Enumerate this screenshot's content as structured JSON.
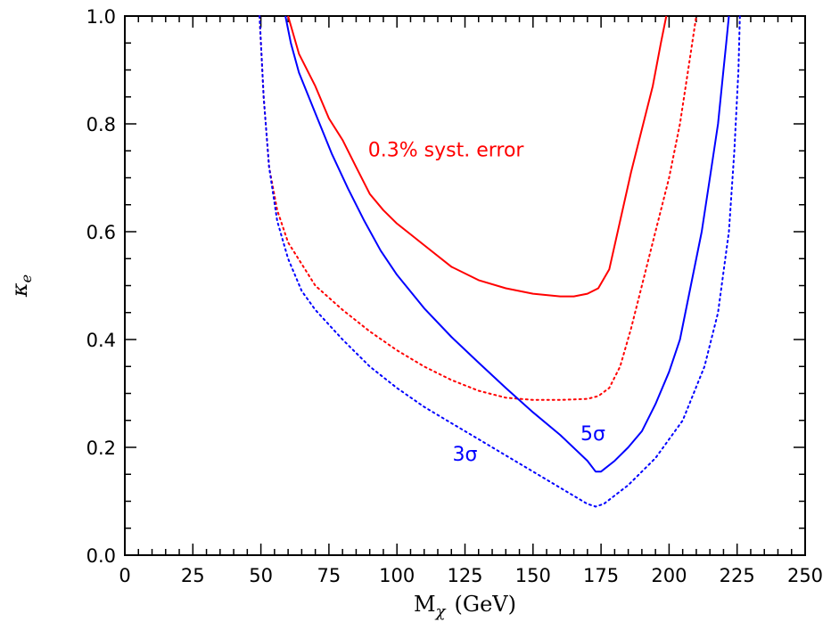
{
  "chart_data": {
    "type": "line",
    "title": "",
    "xlabel": {
      "main": "M",
      "sub": "χ",
      "unit": "(GeV)"
    },
    "ylabel": {
      "main": "κ",
      "sub": "e"
    },
    "xlim": [
      0,
      250
    ],
    "ylim": [
      0,
      1.0
    ],
    "x_ticks": [
      0,
      25,
      50,
      75,
      100,
      125,
      150,
      175,
      200,
      225,
      250
    ],
    "x_tick_labels": [
      "0",
      "25",
      "50",
      "75",
      "100",
      "125",
      "150",
      "175",
      "200",
      "225",
      "250"
    ],
    "y_ticks": [
      0.0,
      0.2,
      0.4,
      0.6,
      0.8,
      1.0
    ],
    "y_tick_labels": [
      "0.0",
      "0.2",
      "0.4",
      "0.6",
      "0.8",
      "1.0"
    ],
    "grid": false,
    "series": [
      {
        "color": "#ff0000",
        "dash": "solid",
        "points": [
          [
            60,
            1.0
          ],
          [
            64,
            0.93
          ],
          [
            70,
            0.87
          ],
          [
            75,
            0.81
          ],
          [
            80,
            0.77
          ],
          [
            85,
            0.72
          ],
          [
            90,
            0.67
          ],
          [
            95,
            0.64
          ],
          [
            100,
            0.615
          ],
          [
            105,
            0.595
          ],
          [
            110,
            0.575
          ],
          [
            120,
            0.535
          ],
          [
            130,
            0.51
          ],
          [
            140,
            0.495
          ],
          [
            150,
            0.485
          ],
          [
            160,
            0.48
          ],
          [
            165,
            0.48
          ],
          [
            170,
            0.485
          ],
          [
            174,
            0.495
          ],
          [
            178,
            0.53
          ],
          [
            182,
            0.62
          ],
          [
            186,
            0.71
          ],
          [
            190,
            0.79
          ],
          [
            194,
            0.87
          ],
          [
            197,
            0.95
          ],
          [
            199,
            1.0
          ]
        ]
      },
      {
        "color": "#ff0000",
        "dash": "dotted",
        "points": [
          [
            49.5,
            1.0
          ],
          [
            51,
            0.85
          ],
          [
            53,
            0.72
          ],
          [
            56,
            0.64
          ],
          [
            60,
            0.58
          ],
          [
            65,
            0.54
          ],
          [
            70,
            0.5
          ],
          [
            80,
            0.455
          ],
          [
            90,
            0.415
          ],
          [
            100,
            0.38
          ],
          [
            110,
            0.35
          ],
          [
            120,
            0.325
          ],
          [
            130,
            0.305
          ],
          [
            140,
            0.292
          ],
          [
            150,
            0.288
          ],
          [
            160,
            0.288
          ],
          [
            170,
            0.29
          ],
          [
            174,
            0.295
          ],
          [
            178,
            0.31
          ],
          [
            182,
            0.35
          ],
          [
            186,
            0.42
          ],
          [
            190,
            0.5
          ],
          [
            195,
            0.6
          ],
          [
            200,
            0.7
          ],
          [
            204,
            0.8
          ],
          [
            207,
            0.9
          ],
          [
            210,
            1.0
          ]
        ]
      },
      {
        "color": "#0000ff",
        "dash": "solid",
        "points": [
          [
            59,
            1.0
          ],
          [
            61,
            0.95
          ],
          [
            64,
            0.895
          ],
          [
            70,
            0.82
          ],
          [
            76,
            0.745
          ],
          [
            82,
            0.68
          ],
          [
            88,
            0.62
          ],
          [
            94,
            0.565
          ],
          [
            100,
            0.52
          ],
          [
            110,
            0.458
          ],
          [
            120,
            0.405
          ],
          [
            130,
            0.357
          ],
          [
            140,
            0.31
          ],
          [
            150,
            0.265
          ],
          [
            160,
            0.223
          ],
          [
            170,
            0.175
          ],
          [
            173,
            0.155
          ],
          [
            175,
            0.155
          ],
          [
            180,
            0.175
          ],
          [
            185,
            0.2
          ],
          [
            190,
            0.23
          ],
          [
            195,
            0.28
          ],
          [
            200,
            0.34
          ],
          [
            204,
            0.4
          ],
          [
            208,
            0.5
          ],
          [
            212,
            0.6
          ],
          [
            215,
            0.7
          ],
          [
            218,
            0.8
          ],
          [
            220,
            0.9
          ],
          [
            221,
            0.95
          ],
          [
            222,
            1.0
          ]
        ]
      },
      {
        "color": "#0000ff",
        "dash": "dotted",
        "points": [
          [
            49.5,
            1.0
          ],
          [
            51,
            0.85
          ],
          [
            53,
            0.72
          ],
          [
            56,
            0.62
          ],
          [
            60,
            0.55
          ],
          [
            65,
            0.49
          ],
          [
            70,
            0.455
          ],
          [
            80,
            0.4
          ],
          [
            90,
            0.35
          ],
          [
            100,
            0.31
          ],
          [
            110,
            0.275
          ],
          [
            120,
            0.245
          ],
          [
            130,
            0.215
          ],
          [
            140,
            0.185
          ],
          [
            150,
            0.155
          ],
          [
            160,
            0.125
          ],
          [
            170,
            0.095
          ],
          [
            173,
            0.09
          ],
          [
            176,
            0.095
          ],
          [
            185,
            0.13
          ],
          [
            195,
            0.18
          ],
          [
            205,
            0.25
          ],
          [
            213,
            0.35
          ],
          [
            218,
            0.45
          ],
          [
            222,
            0.6
          ],
          [
            224,
            0.75
          ],
          [
            225.5,
            0.9
          ],
          [
            226,
            1.0
          ]
        ]
      }
    ],
    "annotations": [
      {
        "text": "0.3% syst. error",
        "color": "#ff0000",
        "x": 118,
        "y": 0.74
      },
      {
        "text": "5σ",
        "color": "#0000ff",
        "x": 172,
        "y": 0.213
      },
      {
        "text": "3σ",
        "color": "#0000ff",
        "x": 125,
        "y": 0.175
      }
    ]
  }
}
